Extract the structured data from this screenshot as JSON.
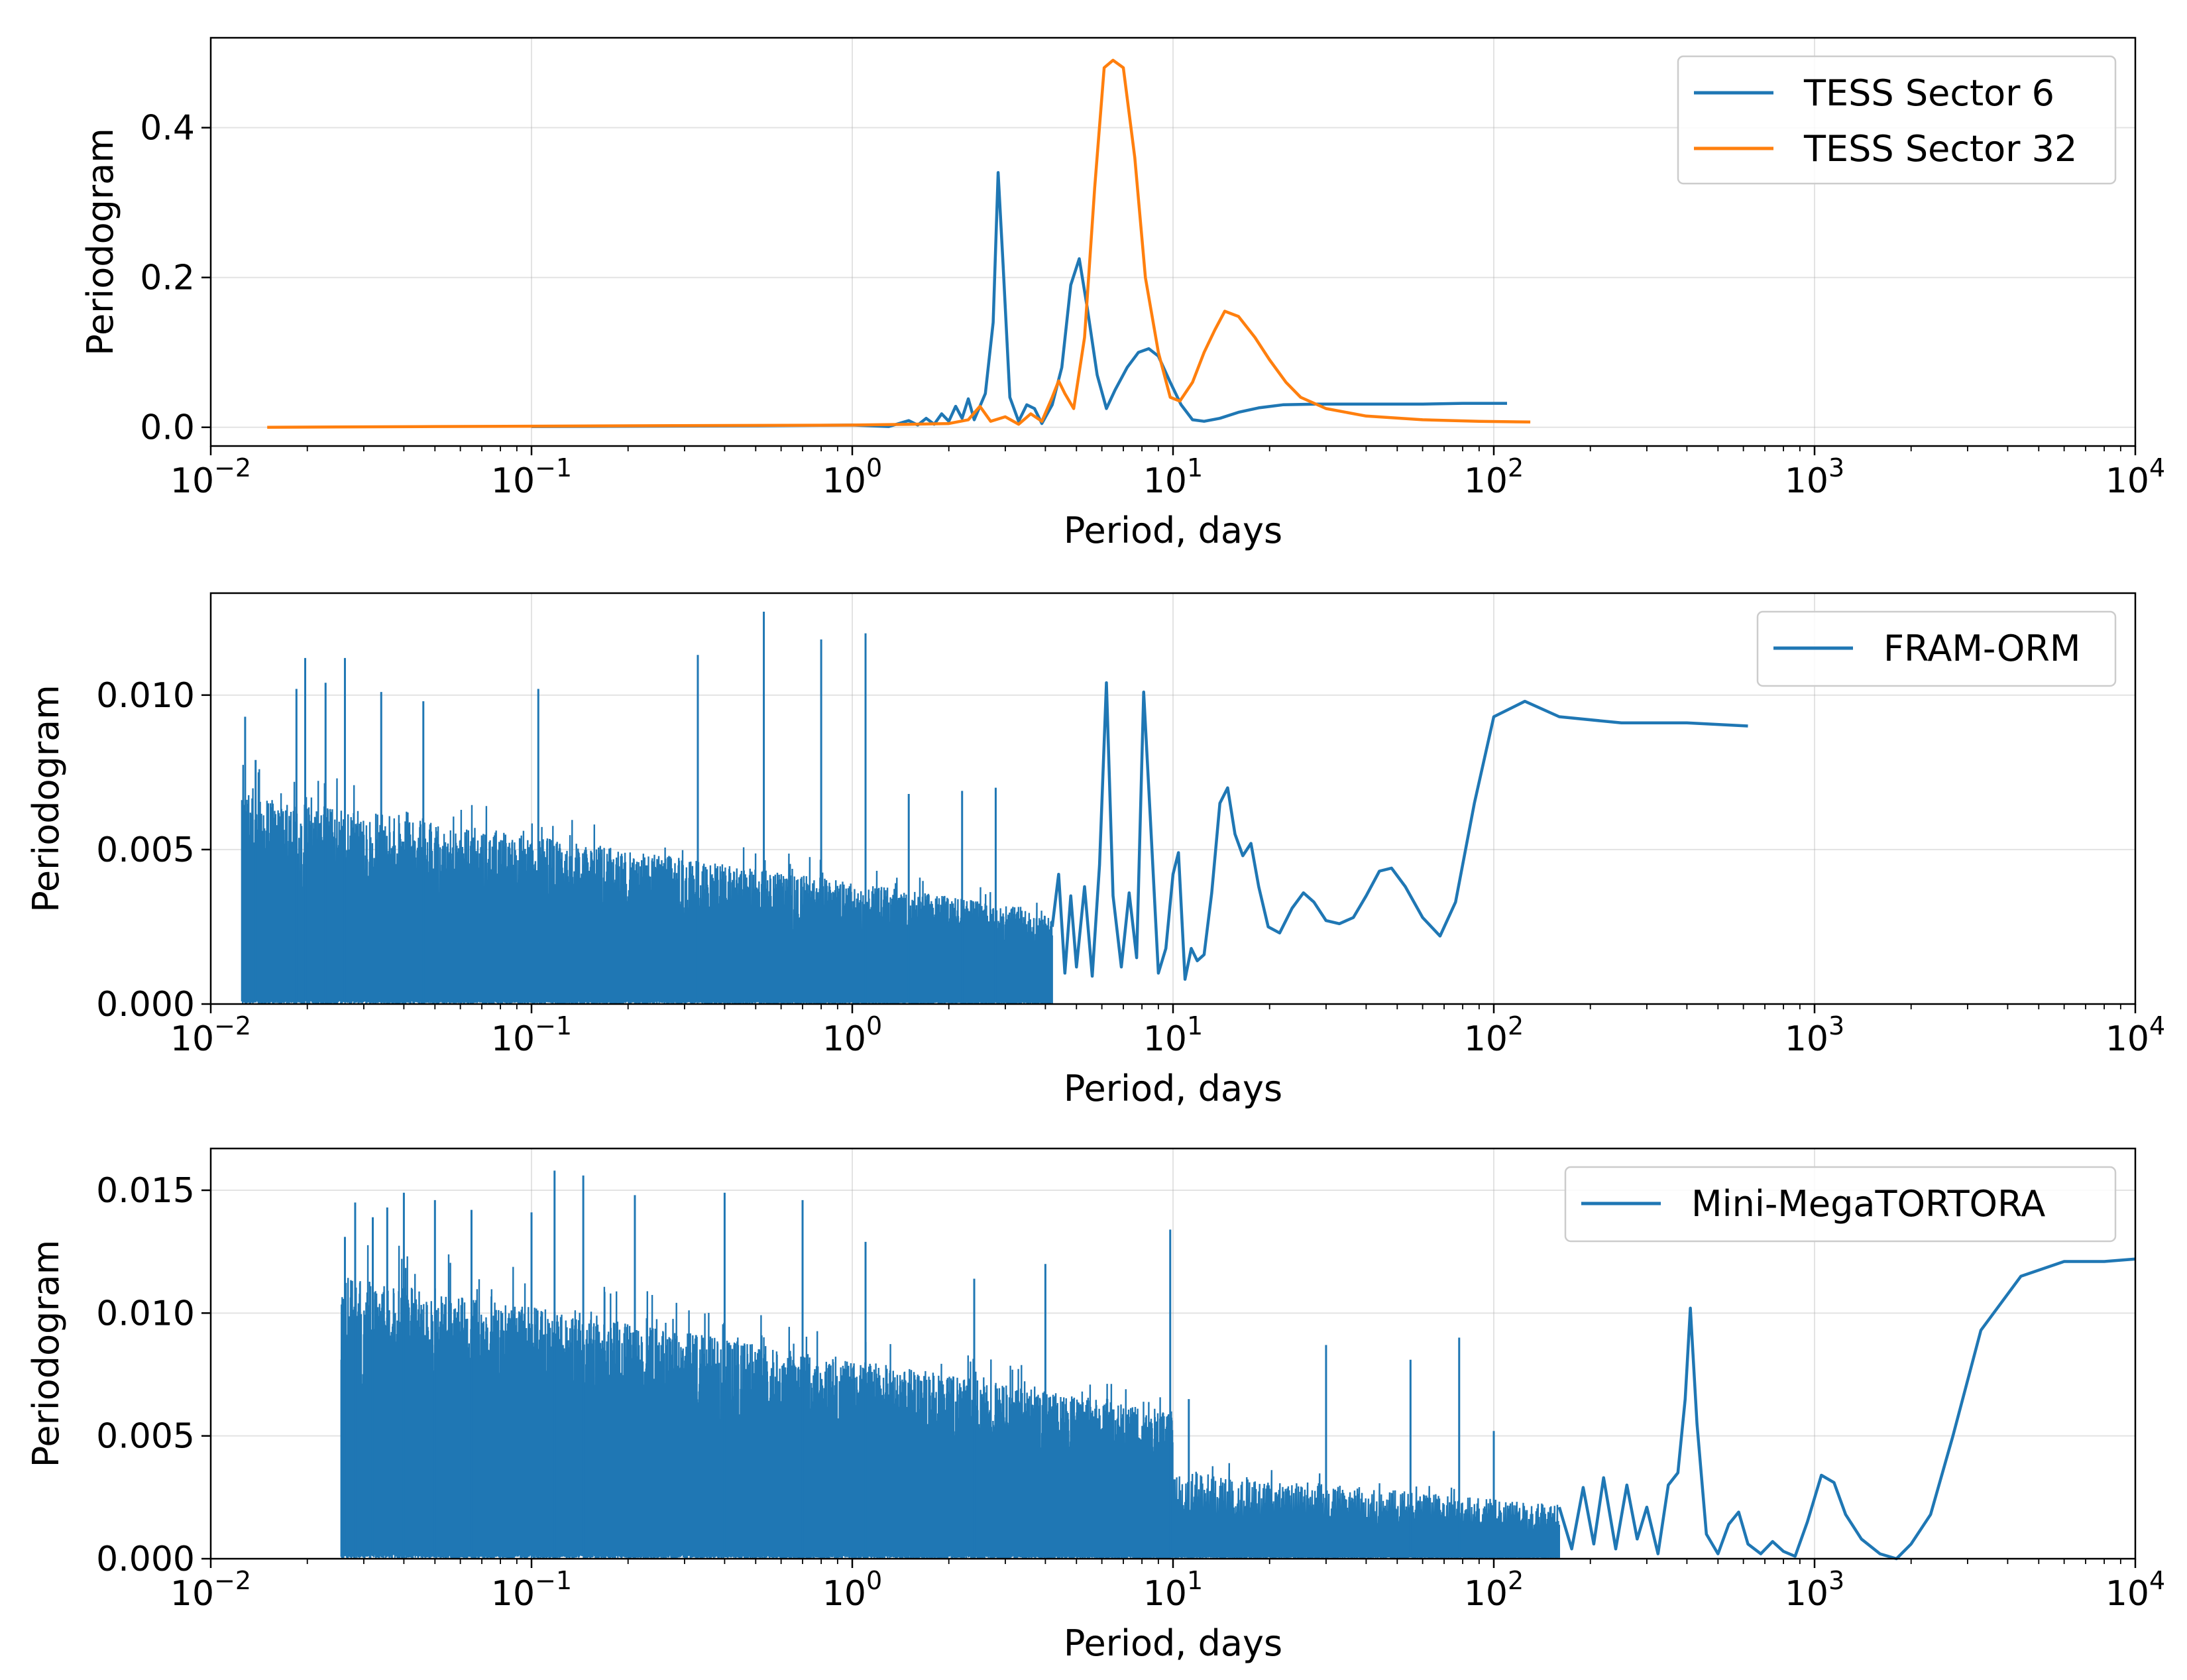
{
  "colors": {
    "blue": "#1f77b4",
    "orange": "#ff7f0e"
  },
  "chart_data": [
    {
      "type": "line",
      "xscale": "log",
      "xlabel": "Period, days",
      "ylabel": "Periodogram",
      "xlim": [
        0.01,
        10000
      ],
      "ylim": [
        -0.025,
        0.52
      ],
      "yticks": [
        0.0,
        0.2,
        0.4
      ],
      "ytick_labels": [
        "0.0",
        "0.2",
        "0.4"
      ],
      "xtick_exponents": [
        "−2",
        "−1",
        "0",
        "1",
        "2",
        "3",
        "4"
      ],
      "grid": true,
      "legend": "top-right",
      "series": [
        {
          "name": "TESS Sector 6",
          "color": "#1f77b4",
          "x": [
            0.1,
            0.5,
            1.0,
            1.3,
            1.5,
            1.6,
            1.7,
            1.8,
            1.9,
            2.0,
            2.1,
            2.2,
            2.3,
            2.4,
            2.6,
            2.75,
            2.85,
            2.95,
            3.1,
            3.3,
            3.5,
            3.7,
            3.9,
            4.2,
            4.5,
            4.8,
            5.1,
            5.4,
            5.8,
            6.2,
            6.6,
            7.2,
            7.8,
            8.4,
            9.0,
            9.8,
            10.6,
            11.5,
            12.5,
            14.0,
            16.0,
            18.5,
            22.0,
            28.0,
            40.0,
            60.0,
            80.0,
            110.0
          ],
          "y": [
            0.001,
            0.002,
            0.003,
            0.001,
            0.009,
            0.003,
            0.012,
            0.004,
            0.018,
            0.008,
            0.028,
            0.012,
            0.038,
            0.01,
            0.045,
            0.14,
            0.34,
            0.22,
            0.04,
            0.008,
            0.03,
            0.025,
            0.005,
            0.03,
            0.08,
            0.19,
            0.225,
            0.16,
            0.07,
            0.025,
            0.05,
            0.08,
            0.1,
            0.105,
            0.095,
            0.06,
            0.03,
            0.01,
            0.008,
            0.012,
            0.02,
            0.026,
            0.03,
            0.031,
            0.031,
            0.031,
            0.032,
            0.032
          ]
        },
        {
          "name": "TESS Sector 32",
          "color": "#ff7f0e",
          "x": [
            0.015,
            0.05,
            0.2,
            1.0,
            1.5,
            2.0,
            2.3,
            2.5,
            2.7,
            3.0,
            3.3,
            3.6,
            3.9,
            4.2,
            4.4,
            4.6,
            4.9,
            5.3,
            5.7,
            6.1,
            6.5,
            7.0,
            7.6,
            8.2,
            9.0,
            9.8,
            10.5,
            11.5,
            12.5,
            13.5,
            14.5,
            16.0,
            18.0,
            20.0,
            22.5,
            25.0,
            30.0,
            40.0,
            60.0,
            90.0,
            130.0
          ],
          "y": [
            0.0,
            0.001,
            0.002,
            0.003,
            0.004,
            0.005,
            0.01,
            0.028,
            0.008,
            0.014,
            0.004,
            0.018,
            0.008,
            0.04,
            0.062,
            0.045,
            0.025,
            0.12,
            0.32,
            0.48,
            0.49,
            0.48,
            0.36,
            0.2,
            0.1,
            0.04,
            0.035,
            0.06,
            0.1,
            0.13,
            0.155,
            0.148,
            0.12,
            0.09,
            0.06,
            0.04,
            0.025,
            0.015,
            0.01,
            0.008,
            0.007
          ]
        }
      ]
    },
    {
      "type": "line",
      "xscale": "log",
      "xlabel": "Period, days",
      "ylabel": "Periodogram",
      "xlim": [
        0.01,
        10000
      ],
      "ylim": [
        0.0,
        0.0133
      ],
      "yticks": [
        0.0,
        0.005,
        0.01
      ],
      "ytick_labels": [
        "0.000",
        "0.005",
        "0.010"
      ],
      "xtick_exponents": [
        "−2",
        "−1",
        "0",
        "1",
        "2",
        "3",
        "4"
      ],
      "grid": true,
      "legend": "top-right",
      "noise": {
        "x_range": [
          0.0125,
          4.2
        ],
        "seed": 7,
        "n": 1900,
        "amp_start": 0.0068,
        "amp_end": 0.003
      },
      "peaks": [
        [
          0.0128,
          0.0093
        ],
        [
          0.0138,
          0.0079
        ],
        [
          0.0185,
          0.0102
        ],
        [
          0.0197,
          0.0112
        ],
        [
          0.0228,
          0.0104
        ],
        [
          0.0262,
          0.0112
        ],
        [
          0.034,
          0.0101
        ],
        [
          0.046,
          0.0098
        ],
        [
          0.105,
          0.0102
        ],
        [
          0.33,
          0.0113
        ],
        [
          0.53,
          0.0127
        ],
        [
          0.8,
          0.0118
        ],
        [
          1.1,
          0.012
        ],
        [
          1.5,
          0.0068
        ],
        [
          2.2,
          0.0069
        ],
        [
          2.8,
          0.007
        ]
      ],
      "series": [
        {
          "name": "FRAM-ORM",
          "color": "#1f77b4",
          "x": [
            4.2,
            4.4,
            4.6,
            4.8,
            5.0,
            5.3,
            5.6,
            5.9,
            6.2,
            6.5,
            6.9,
            7.3,
            7.7,
            8.1,
            8.5,
            9.0,
            9.5,
            10.0,
            10.4,
            10.9,
            11.4,
            11.9,
            12.5,
            13.2,
            14.0,
            14.8,
            15.6,
            16.5,
            17.5,
            18.5,
            19.8,
            21.5,
            23.5,
            25.5,
            27.5,
            30.0,
            33.0,
            36.5,
            40.0,
            44.0,
            48.0,
            53.0,
            60.0,
            68.0,
            76.0,
            87.0,
            100.0,
            125.0,
            160.0,
            250.0,
            400.0,
            620.0
          ],
          "y": [
            0.0025,
            0.0042,
            0.001,
            0.0035,
            0.0012,
            0.0038,
            0.0009,
            0.0045,
            0.0104,
            0.0035,
            0.0012,
            0.0036,
            0.0015,
            0.0101,
            0.006,
            0.001,
            0.0018,
            0.0042,
            0.0049,
            0.0008,
            0.0018,
            0.0014,
            0.0016,
            0.0036,
            0.0065,
            0.007,
            0.0055,
            0.0048,
            0.0052,
            0.0038,
            0.0025,
            0.0023,
            0.0031,
            0.0036,
            0.0033,
            0.0027,
            0.0026,
            0.0028,
            0.0035,
            0.0043,
            0.0044,
            0.0038,
            0.0028,
            0.0022,
            0.0033,
            0.0065,
            0.0093,
            0.0098,
            0.0093,
            0.0091,
            0.0091,
            0.009
          ]
        }
      ]
    },
    {
      "type": "line",
      "xscale": "log",
      "xlabel": "Period, days",
      "ylabel": "Periodogram",
      "xlim": [
        0.01,
        10000
      ],
      "ylim": [
        0.0,
        0.0167
      ],
      "yticks": [
        0.0,
        0.005,
        0.01,
        0.015
      ],
      "ytick_labels": [
        "0.000",
        "0.005",
        "0.010",
        "0.015"
      ],
      "xtick_exponents": [
        "−2",
        "−1",
        "0",
        "1",
        "2",
        "3",
        "4"
      ],
      "grid": true,
      "legend": "top-right",
      "noise": {
        "x_range": [
          0.0255,
          10.0
        ],
        "seed": 11,
        "n": 2400,
        "amp_start": 0.0115,
        "amp_end": 0.006
      },
      "noise2": {
        "x_range": [
          10.0,
          160.0
        ],
        "seed": 23,
        "n": 420,
        "amp_start": 0.0036,
        "amp_end": 0.0022
      },
      "peaks": [
        [
          0.0262,
          0.0131
        ],
        [
          0.0282,
          0.0145
        ],
        [
          0.032,
          0.0139
        ],
        [
          0.0355,
          0.0143
        ],
        [
          0.04,
          0.0149
        ],
        [
          0.05,
          0.0146
        ],
        [
          0.065,
          0.0142
        ],
        [
          0.1,
          0.0141
        ],
        [
          0.118,
          0.0158
        ],
        [
          0.145,
          0.0156
        ],
        [
          0.21,
          0.0148
        ],
        [
          0.4,
          0.0149
        ],
        [
          0.7,
          0.0146
        ],
        [
          1.1,
          0.0129
        ],
        [
          2.4,
          0.0114
        ],
        [
          4.0,
          0.012
        ],
        [
          9.8,
          0.0134
        ],
        [
          11.2,
          0.0065
        ],
        [
          30.0,
          0.0087
        ],
        [
          55.0,
          0.0081
        ],
        [
          78.0,
          0.009
        ],
        [
          100.0,
          0.0052
        ]
      ],
      "series": [
        {
          "name": "Mini-MegaTORTORA",
          "color": "#1f77b4",
          "x": [
            160.0,
            175.0,
            190.0,
            205.0,
            220.0,
            240.0,
            260.0,
            280.0,
            300.0,
            325.0,
            350.0,
            375.0,
            395.0,
            410.0,
            430.0,
            460.0,
            500.0,
            540.0,
            580.0,
            620.0,
            680.0,
            740.0,
            800.0,
            870.0,
            950.0,
            1050.0,
            1150.0,
            1250.0,
            1400.0,
            1600.0,
            1800.0,
            2000.0,
            2300.0,
            2700.0,
            3300.0,
            4400.0,
            6000.0,
            8000.0,
            10000.0
          ],
          "y": [
            0.0021,
            0.0004,
            0.0029,
            0.0006,
            0.0033,
            0.0004,
            0.003,
            0.0008,
            0.0021,
            0.0002,
            0.003,
            0.0035,
            0.0065,
            0.0102,
            0.0055,
            0.001,
            0.0002,
            0.0014,
            0.0019,
            0.0006,
            0.0002,
            0.0007,
            0.0003,
            0.0001,
            0.0015,
            0.0034,
            0.0031,
            0.0018,
            0.0008,
            0.0002,
            0.0,
            0.0006,
            0.0018,
            0.005,
            0.0093,
            0.0115,
            0.0121,
            0.0121,
            0.0122
          ]
        }
      ]
    }
  ]
}
